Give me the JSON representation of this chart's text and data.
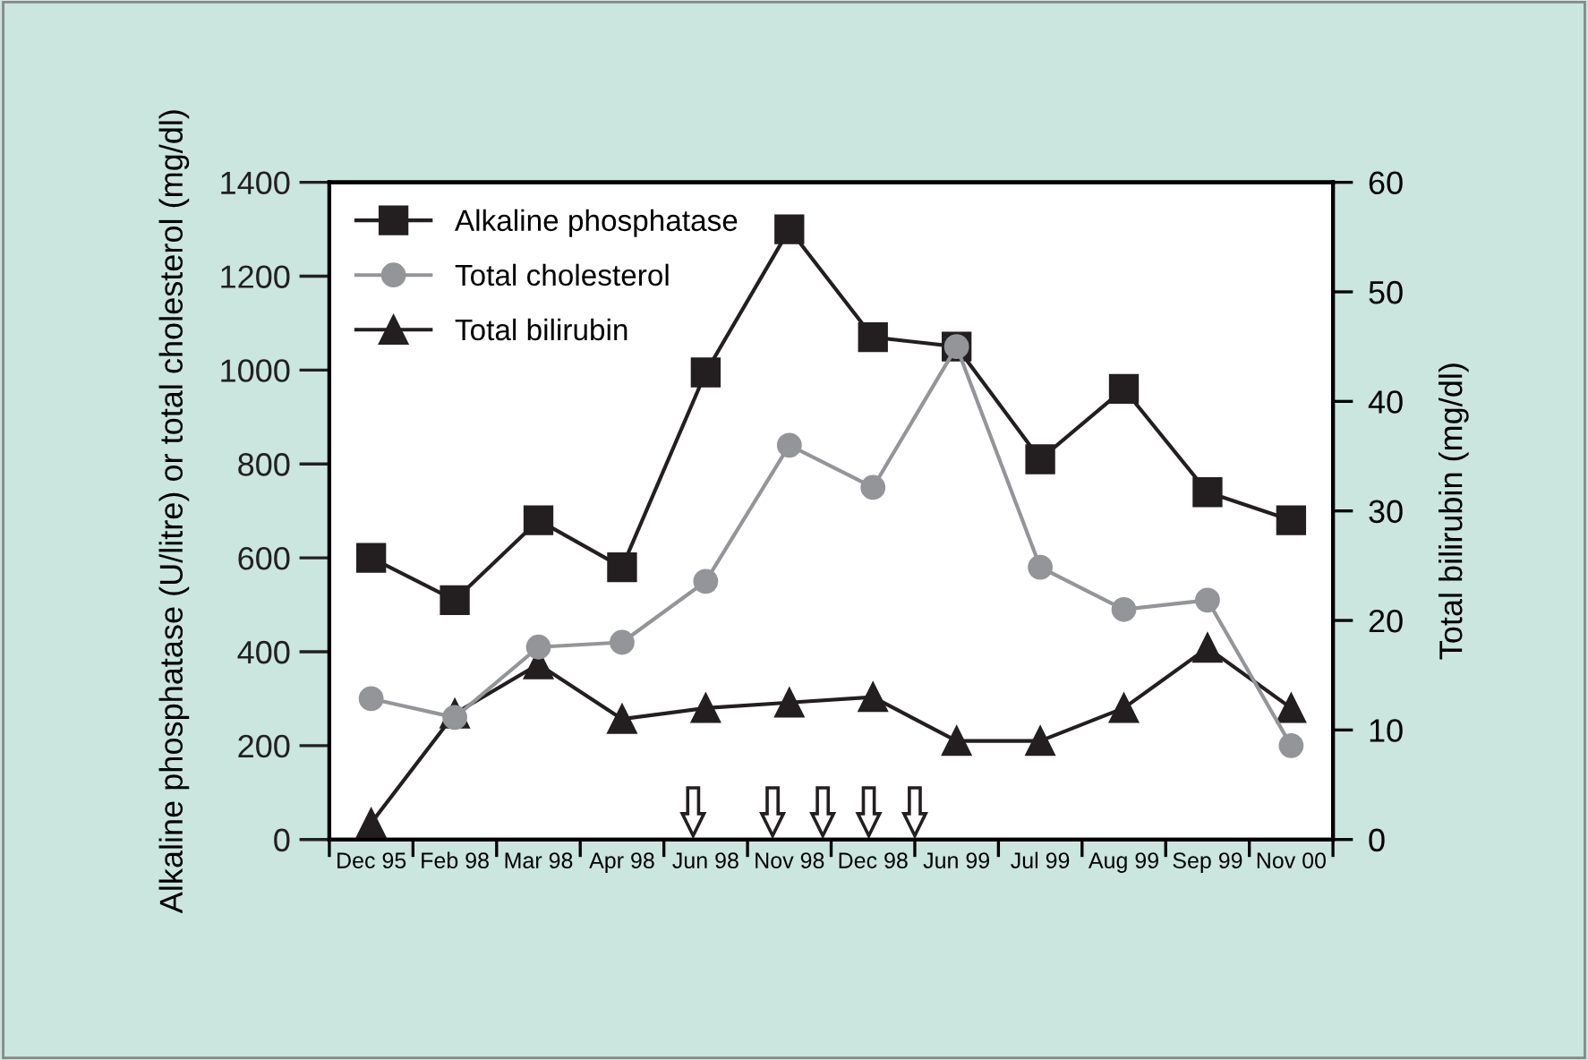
{
  "chart_data": {
    "type": "line",
    "ylabel": "Alkaline phosphatase (U/litre) or total cholesterol (mg/dl)",
    "y2label": "Total bilirubin (mg/dl)",
    "categories": [
      "Dec 95",
      "Feb 98",
      "Mar 98",
      "Apr 98",
      "Jun 98",
      "Nov 98",
      "Dec 98",
      "Jun 99",
      "Jul 99",
      "Aug 99",
      "Sep 99",
      "Nov 00"
    ],
    "series": [
      {
        "name": "Alkaline phosphatase",
        "color": "#231f20",
        "marker": "square",
        "values": [
          600,
          510,
          680,
          580,
          995,
          1300,
          1070,
          1050,
          810,
          960,
          740,
          680
        ]
      },
      {
        "name": "Total cholesterol",
        "color": "#939598",
        "marker": "circle",
        "values": [
          300,
          260,
          410,
          420,
          550,
          840,
          750,
          1050,
          580,
          490,
          510,
          200
        ]
      },
      {
        "name": "Total bilirubin",
        "color": "#231f20",
        "marker": "triangle",
        "axis": "y2",
        "values": [
          1.5,
          11.5,
          16,
          11,
          12,
          12.5,
          13,
          9,
          9,
          12,
          17.5,
          12
        ]
      }
    ],
    "ylim": [
      0,
      1400
    ],
    "yticks": [
      0,
      200,
      400,
      600,
      800,
      1000,
      1200,
      1400
    ],
    "y2lim": [
      0,
      60
    ],
    "y2ticks": [
      0,
      10,
      20,
      30,
      40,
      50,
      60
    ],
    "grid": false,
    "legend": "top left",
    "line_style": "solid"
  }
}
